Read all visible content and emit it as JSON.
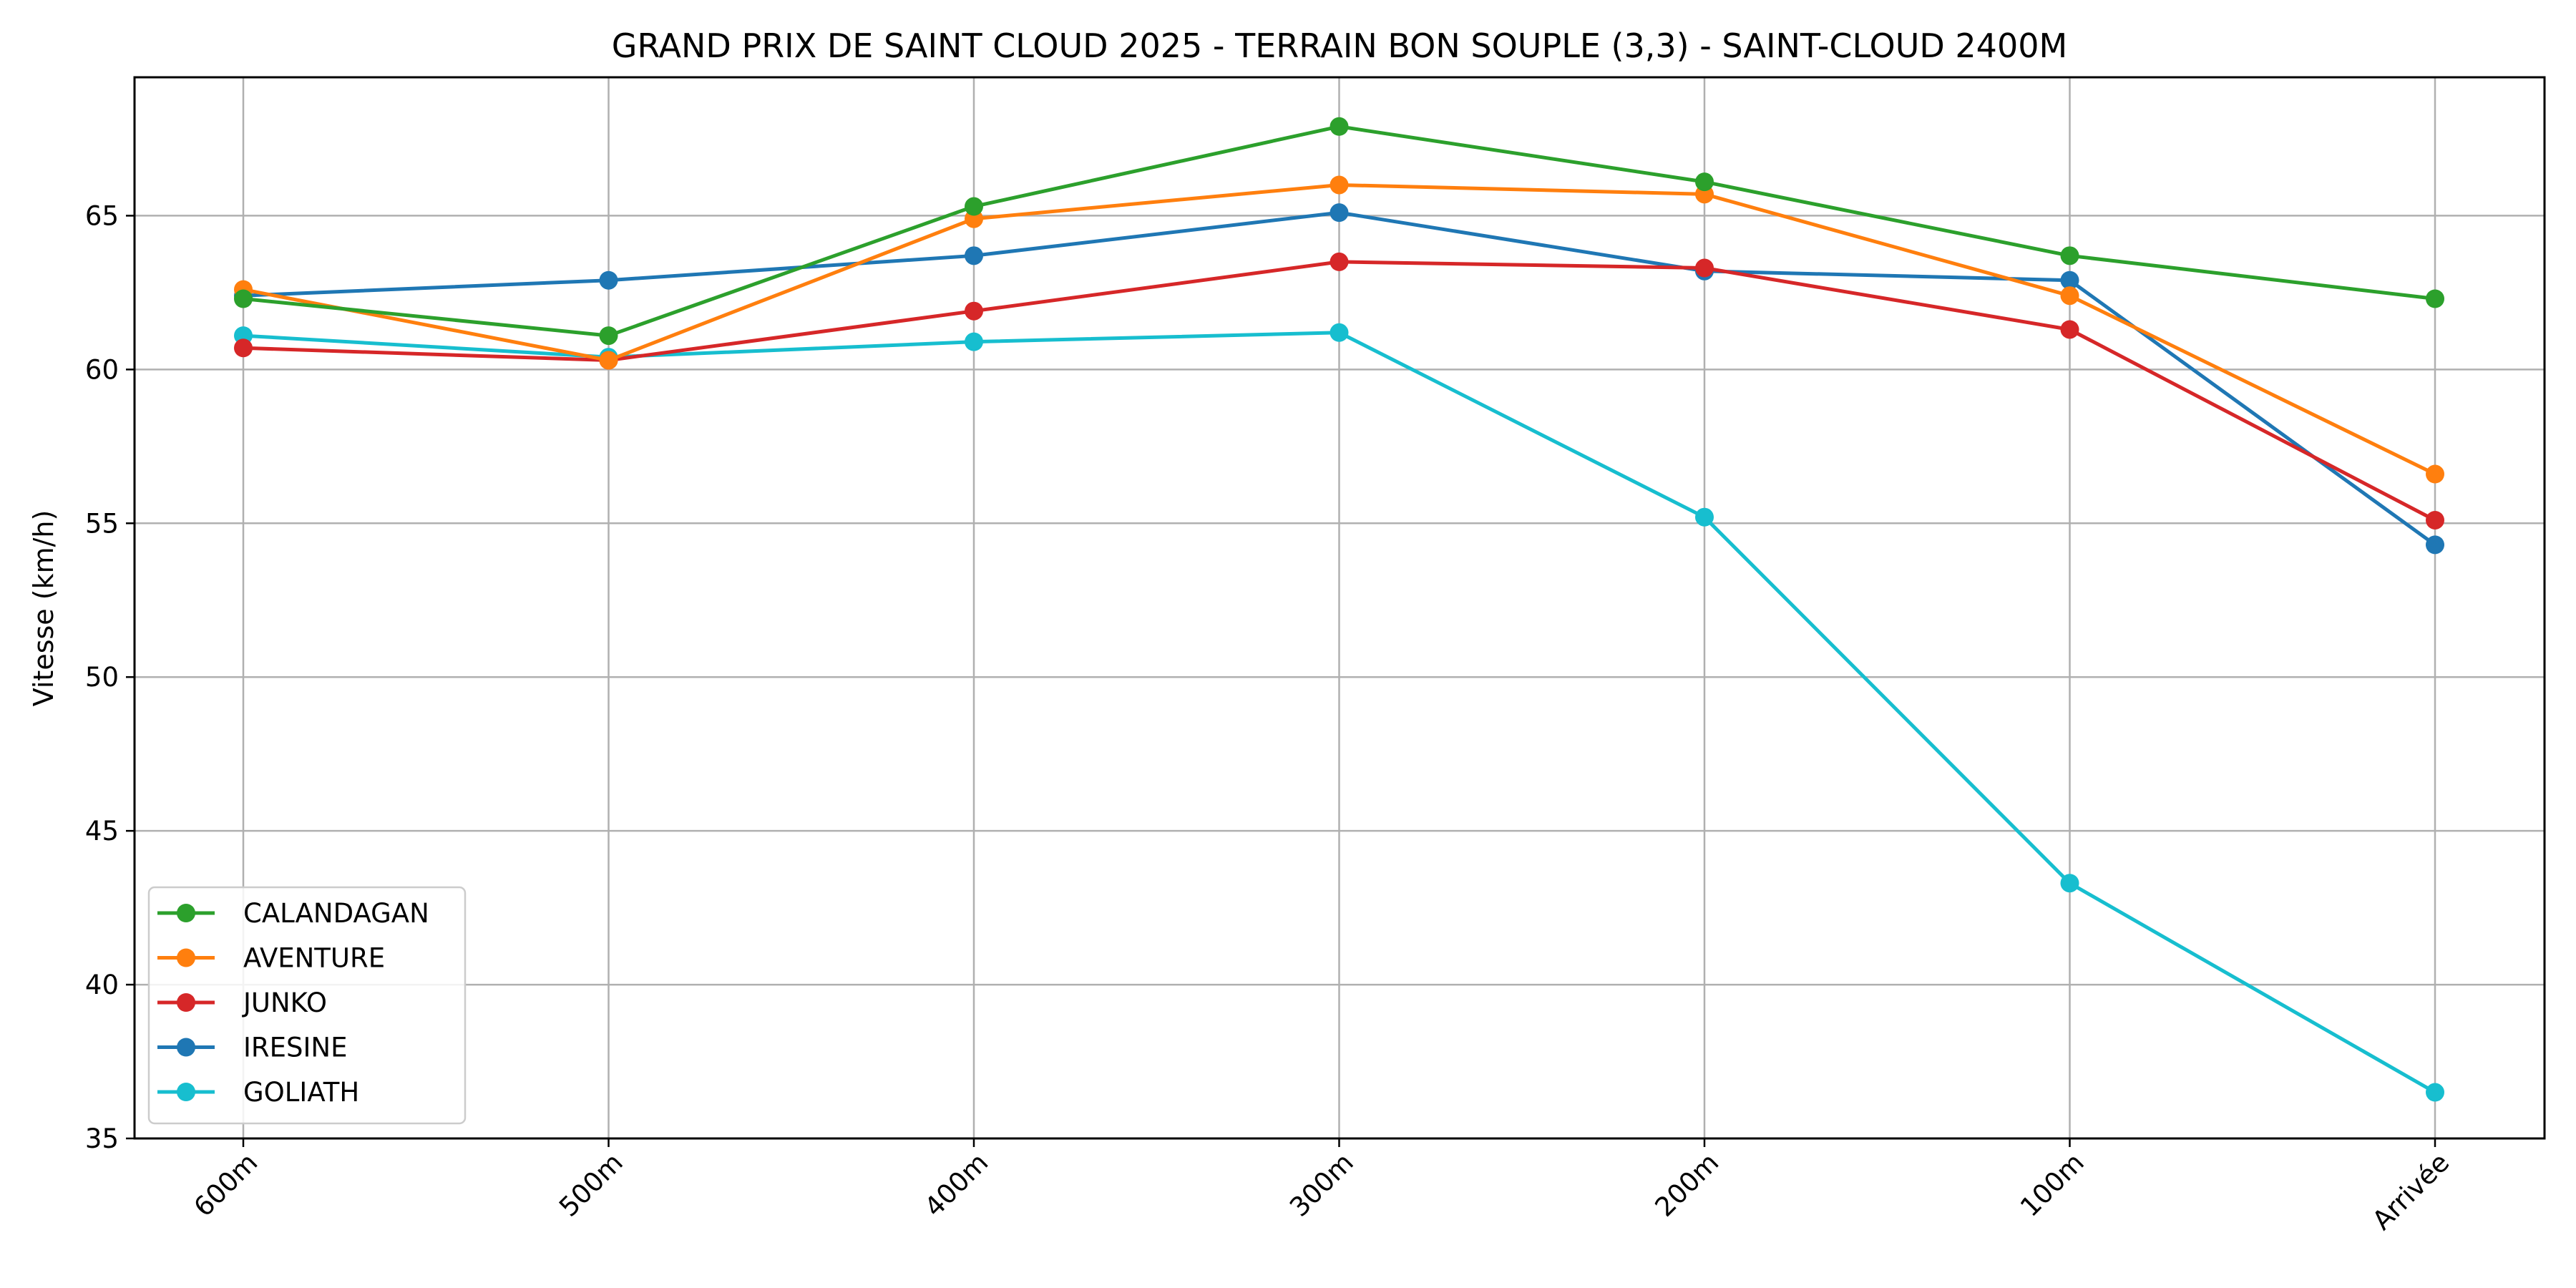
{
  "chart_data": {
    "type": "line",
    "title": "GRAND PRIX DE SAINT CLOUD 2025 - TERRAIN BON SOUPLE  (3,3) - SAINT-CLOUD 2400M",
    "xlabel": "",
    "ylabel": "Vitesse (km/h)",
    "categories": [
      "600m",
      "500m",
      "400m",
      "300m",
      "200m",
      "100m",
      "Arrivée"
    ],
    "ylim": [
      35,
      69.5
    ],
    "yticks": [
      35,
      40,
      45,
      50,
      55,
      60,
      65
    ],
    "grid": true,
    "legend_position": "lower-left",
    "marker": "circle",
    "series": [
      {
        "name": "CALANDAGAN",
        "color": "#2ca02c",
        "values": [
          62.3,
          61.1,
          65.3,
          67.9,
          66.1,
          63.7,
          62.3
        ]
      },
      {
        "name": "AVENTURE",
        "color": "#ff7f0e",
        "values": [
          62.6,
          60.3,
          64.9,
          66.0,
          65.7,
          62.4,
          56.6
        ]
      },
      {
        "name": "JUNKO",
        "color": "#d62728",
        "values": [
          60.7,
          60.3,
          61.9,
          63.5,
          63.3,
          61.3,
          55.1
        ]
      },
      {
        "name": "IRESINE",
        "color": "#1f77b4",
        "values": [
          62.4,
          62.9,
          63.7,
          65.1,
          63.2,
          62.9,
          54.3
        ]
      },
      {
        "name": "GOLIATH",
        "color": "#17becf",
        "values": [
          61.1,
          60.4,
          60.9,
          61.2,
          55.2,
          43.3,
          36.5
        ]
      }
    ]
  }
}
